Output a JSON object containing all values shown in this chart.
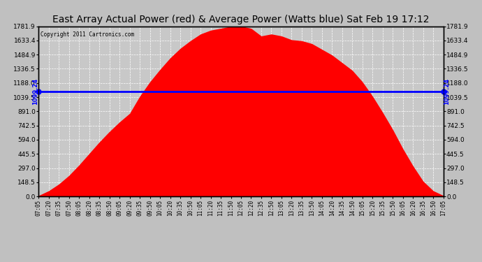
{
  "title": "East Array Actual Power (red) & Average Power (Watts blue) Sat Feb 19 17:12",
  "copyright": "Copyright 2011 Cartronics.com",
  "average_power": 1099.24,
  "ylim": [
    0,
    1781.9
  ],
  "yticks": [
    0.0,
    148.5,
    297.0,
    445.5,
    594.0,
    742.5,
    891.0,
    1039.5,
    1188.0,
    1336.5,
    1484.9,
    1633.4,
    1781.9
  ],
  "fill_color": "#FF0000",
  "line_color": "#0000FF",
  "avg_label": "1099.24",
  "bg_color": "#C0C0C0",
  "plot_bg_color": "#C8C8C8",
  "grid_color": "white",
  "title_fontsize": 10,
  "x_labels": [
    "07:05",
    "07:20",
    "07:35",
    "07:50",
    "08:05",
    "08:20",
    "08:35",
    "08:50",
    "09:05",
    "09:20",
    "09:35",
    "09:50",
    "10:05",
    "10:20",
    "10:35",
    "10:50",
    "11:05",
    "11:20",
    "11:35",
    "11:50",
    "12:05",
    "12:20",
    "12:35",
    "12:50",
    "13:05",
    "13:20",
    "13:35",
    "13:50",
    "14:05",
    "14:20",
    "14:35",
    "14:50",
    "15:05",
    "15:20",
    "15:35",
    "15:50",
    "16:05",
    "16:20",
    "16:35",
    "16:50",
    "17:05"
  ],
  "power_values": [
    10,
    60,
    130,
    220,
    330,
    450,
    570,
    680,
    780,
    870,
    1050,
    1200,
    1330,
    1450,
    1550,
    1630,
    1700,
    1740,
    1760,
    1780,
    1782,
    1760,
    1680,
    1700,
    1680,
    1640,
    1630,
    1600,
    1540,
    1480,
    1400,
    1320,
    1200,
    1050,
    880,
    700,
    500,
    320,
    160,
    60,
    10
  ]
}
